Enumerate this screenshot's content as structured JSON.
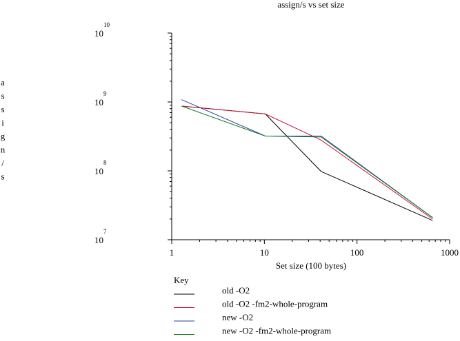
{
  "chart_data": {
    "type": "line",
    "title": "assign/s vs set size",
    "xlabel": "Set size (100 bytes)",
    "ylabel": "assign/s",
    "xscale": "log",
    "yscale": "log",
    "xlim": [
      1,
      1000
    ],
    "ylim": [
      10000000,
      10000000000
    ],
    "x_ticks": [
      {
        "value": 1,
        "label": "1"
      },
      {
        "value": 10,
        "label": "10"
      },
      {
        "value": 100,
        "label": "100"
      },
      {
        "value": 1000,
        "label": "1000"
      }
    ],
    "y_ticks": [
      {
        "value": 10000000,
        "base": "10",
        "exp": "7"
      },
      {
        "value": 100000000,
        "base": "10",
        "exp": "8"
      },
      {
        "value": 1000000000,
        "base": "10",
        "exp": "9"
      },
      {
        "value": 10000000000,
        "base": "10",
        "exp": "10"
      }
    ],
    "legend_title": "Key",
    "legend_position": "bottom",
    "x": [
      1.28,
      10.24,
      40.96,
      655.36
    ],
    "series": [
      {
        "name": "old -O2",
        "color": "#000000",
        "values": [
          870000000,
          670000000,
          98000000,
          19000000
        ]
      },
      {
        "name": "old -O2 -fm2-whole-program",
        "color": "#c8102e",
        "values": [
          870000000,
          670000000,
          280000000,
          20000000
        ]
      },
      {
        "name": "new -O2",
        "color": "#2b3a9a",
        "values": [
          1080000000,
          320000000,
          320000000,
          21000000
        ]
      },
      {
        "name": "new -O2 -fm2-whole-program",
        "color": "#1a7a2e",
        "values": [
          870000000,
          320000000,
          310000000,
          21000000
        ]
      }
    ]
  }
}
